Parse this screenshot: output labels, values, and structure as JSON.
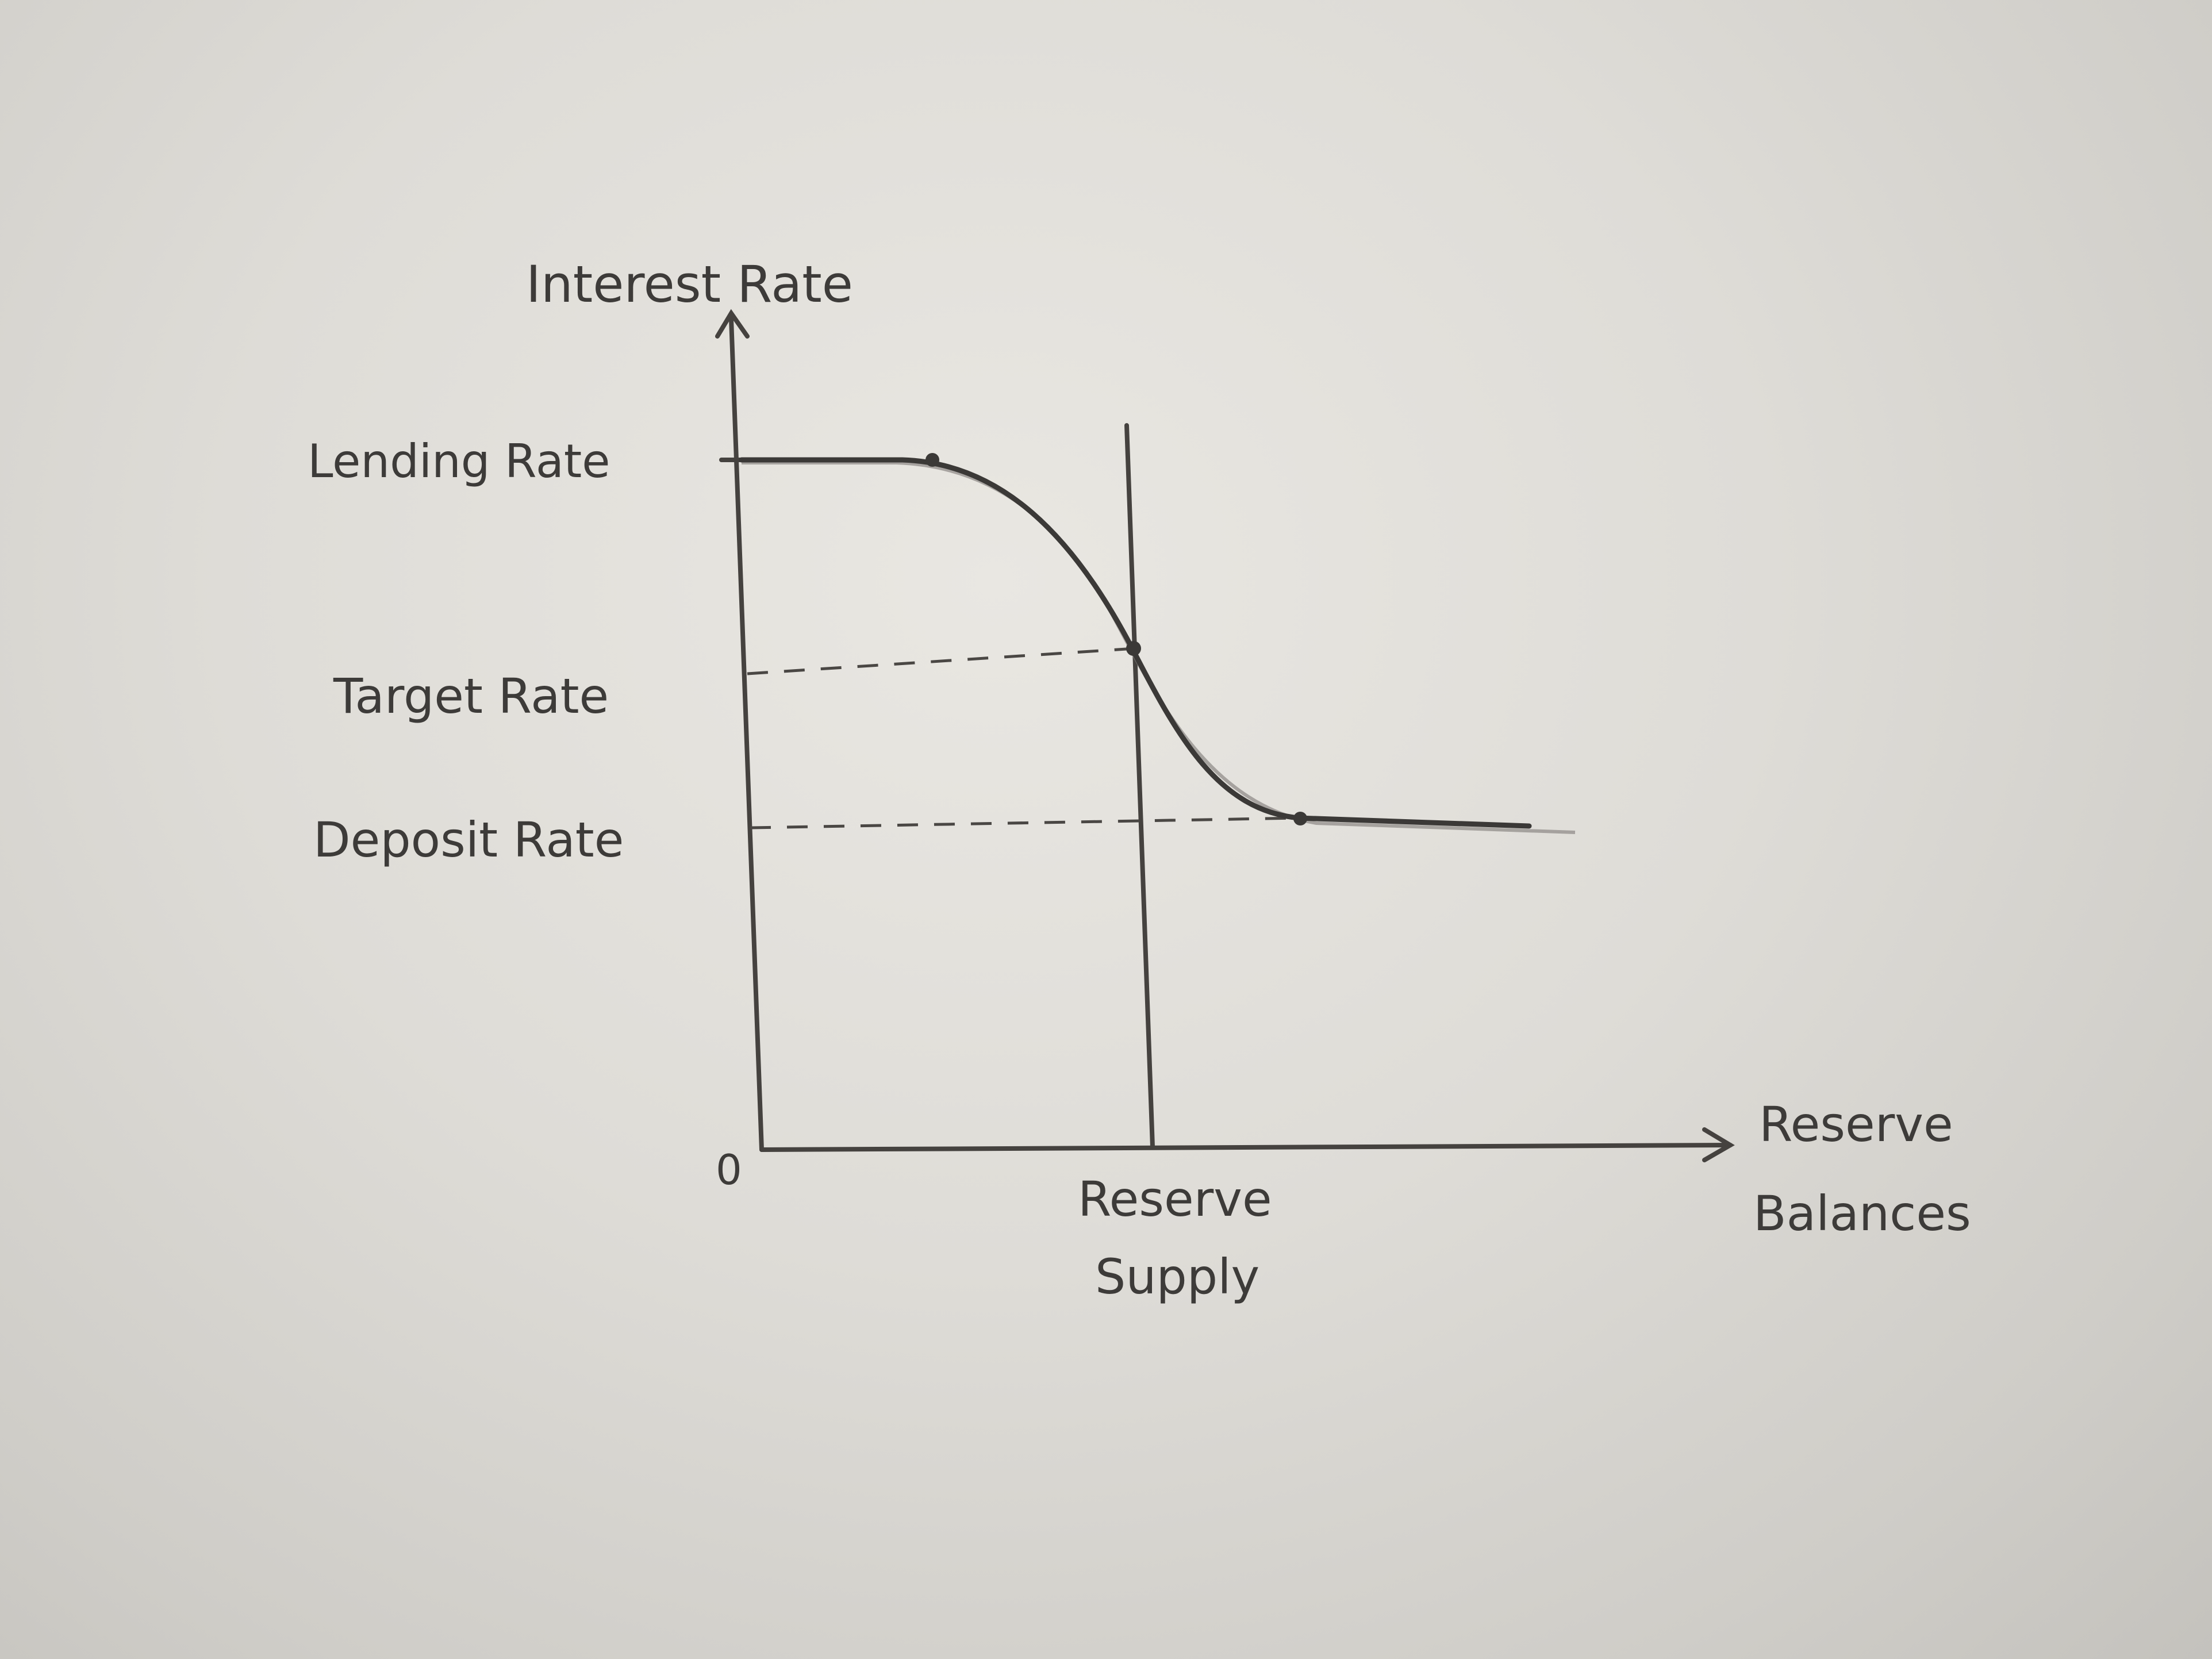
{
  "diagram": {
    "y_axis_label": "Interest Rate",
    "x_axis_label_line1": "Reserve",
    "x_axis_label_line2": "Balances",
    "origin_label": "0",
    "rate_labels": {
      "lending": "Lending Rate",
      "target": "Target Rate",
      "deposit": "Deposit Rate"
    },
    "supply_label_line1": "Reserve",
    "supply_label_line2": "Supply"
  }
}
